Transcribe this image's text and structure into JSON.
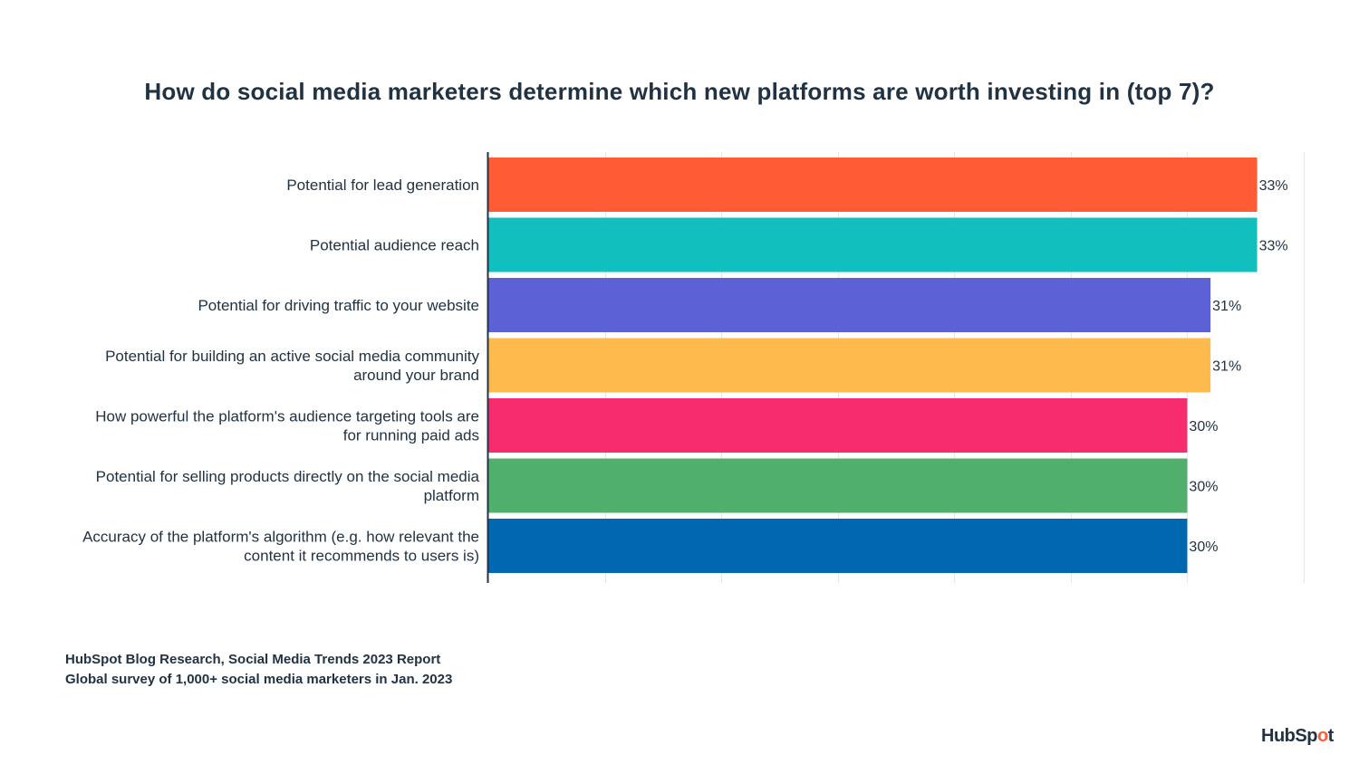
{
  "chart_data": {
    "type": "bar",
    "orientation": "horizontal",
    "title": "How do social media marketers determine which new platforms are worth investing in (top 7)?",
    "categories": [
      [
        "Potential for lead generation"
      ],
      [
        "Potential audience reach"
      ],
      [
        "Potential for driving traffic to your website"
      ],
      [
        "Potential for building an active social media community",
        "around your brand"
      ],
      [
        "How powerful the platform's audience targeting tools are",
        "for running paid ads"
      ],
      [
        "Potential for selling products directly on the social media",
        "platform"
      ],
      [
        "Accuracy of the platform's algorithm (e.g. how relevant the",
        "content it recommends to users is)"
      ]
    ],
    "values": [
      33,
      33,
      31,
      31,
      30,
      30,
      30
    ],
    "value_labels": [
      "33%",
      "33%",
      "31%",
      "31%",
      "30%",
      "30%",
      "30%"
    ],
    "colors": [
      "#ff5c35",
      "#11bfbf",
      "#5c62d6",
      "#ffba4d",
      "#f72c6e",
      "#50b06b",
      "#0068b1"
    ],
    "xlim": [
      0,
      35
    ],
    "grid_step": 5,
    "grid": true,
    "xlabel": "",
    "ylabel": ""
  },
  "source": {
    "line1": "HubSpot Blog Research, Social Media Trends 2023 Report",
    "line2": "Global survey of 1,000+ social media marketers in Jan. 2023"
  },
  "logo": {
    "part1": "HubSp",
    "part2": "o",
    "part3": "t"
  }
}
